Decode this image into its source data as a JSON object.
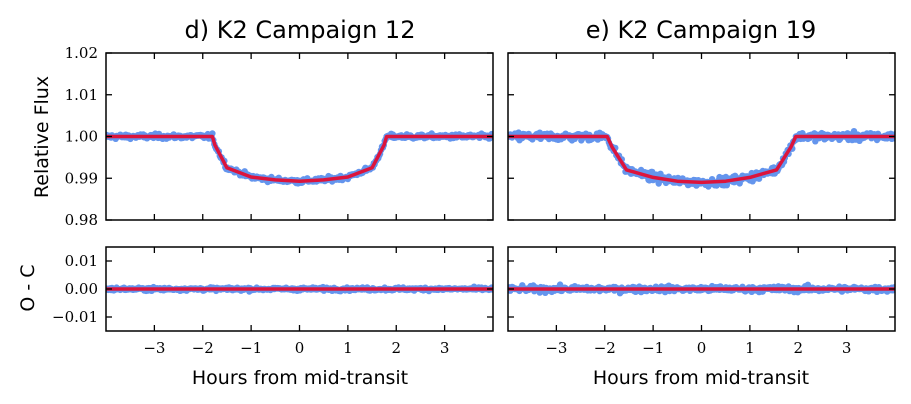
{
  "chart_data": [
    {
      "type": "scatter",
      "title": "d) K2 Campaign 12",
      "ylabel": "Relative Flux",
      "xlabel": "",
      "xlim": [
        -4,
        4
      ],
      "ylim": [
        0.98,
        1.02
      ],
      "yticks": [
        "1.02",
        "1.01",
        "1.00",
        "0.99",
        "0.98"
      ],
      "yticks_values": [
        1.02,
        1.01,
        1.0,
        0.99,
        0.98
      ],
      "model": {
        "x": [
          -4,
          -1.8,
          -1.75,
          -1.5,
          -1.0,
          -0.5,
          0,
          0.5,
          1.0,
          1.5,
          1.75,
          1.8,
          4
        ],
        "y": [
          1.0,
          1.0,
          0.998,
          0.9925,
          0.9903,
          0.9896,
          0.9893,
          0.9896,
          0.9903,
          0.9925,
          0.998,
          1.0,
          1.0
        ]
      },
      "scatter_noise": 0.0004,
      "colors": {
        "data": "#6495ed",
        "model": "#dc143c"
      }
    },
    {
      "type": "scatter",
      "title": "e) K2 Campaign 19",
      "ylabel": "",
      "xlabel": "",
      "xlim": [
        -4,
        4
      ],
      "ylim": [
        0.98,
        1.02
      ],
      "model": {
        "x": [
          -4,
          -1.95,
          -1.85,
          -1.55,
          -1.0,
          -0.5,
          0,
          0.5,
          1.0,
          1.55,
          1.85,
          1.95,
          4
        ],
        "y": [
          1.0,
          1.0,
          0.9975,
          0.992,
          0.9902,
          0.9893,
          0.989,
          0.9893,
          0.9902,
          0.992,
          0.9975,
          1.0,
          1.0
        ]
      },
      "scatter_noise": 0.0007,
      "colors": {
        "data": "#6495ed",
        "model": "#dc143c"
      }
    },
    {
      "type": "scatter",
      "title": "",
      "ylabel": "O - C",
      "xlabel": "Hours from mid-transit",
      "xlim": [
        -4,
        4
      ],
      "ylim": [
        -0.015,
        0.015
      ],
      "yticks": [
        "0.01",
        "0.00",
        "−0.01"
      ],
      "yticks_values": [
        0.01,
        0.0,
        -0.01
      ],
      "xticks": [
        "−3",
        "−2",
        "−1",
        "0",
        "1",
        "2",
        "3"
      ],
      "xticks_values": [
        -3,
        -2,
        -1,
        0,
        1,
        2,
        3
      ],
      "zero_line": 0,
      "scatter_noise": 0.0004,
      "colors": {
        "data": "#6495ed",
        "model": "#dc143c"
      }
    },
    {
      "type": "scatter",
      "title": "",
      "ylabel": "",
      "xlabel": "Hours from mid-transit",
      "xlim": [
        -4,
        4
      ],
      "ylim": [
        -0.015,
        0.015
      ],
      "xticks": [
        "−3",
        "−2",
        "−1",
        "0",
        "1",
        "2",
        "3"
      ],
      "xticks_values": [
        -3,
        -2,
        -1,
        0,
        1,
        2,
        3
      ],
      "zero_line": 0,
      "scatter_noise": 0.0007,
      "colors": {
        "data": "#6495ed",
        "model": "#dc143c"
      }
    }
  ]
}
